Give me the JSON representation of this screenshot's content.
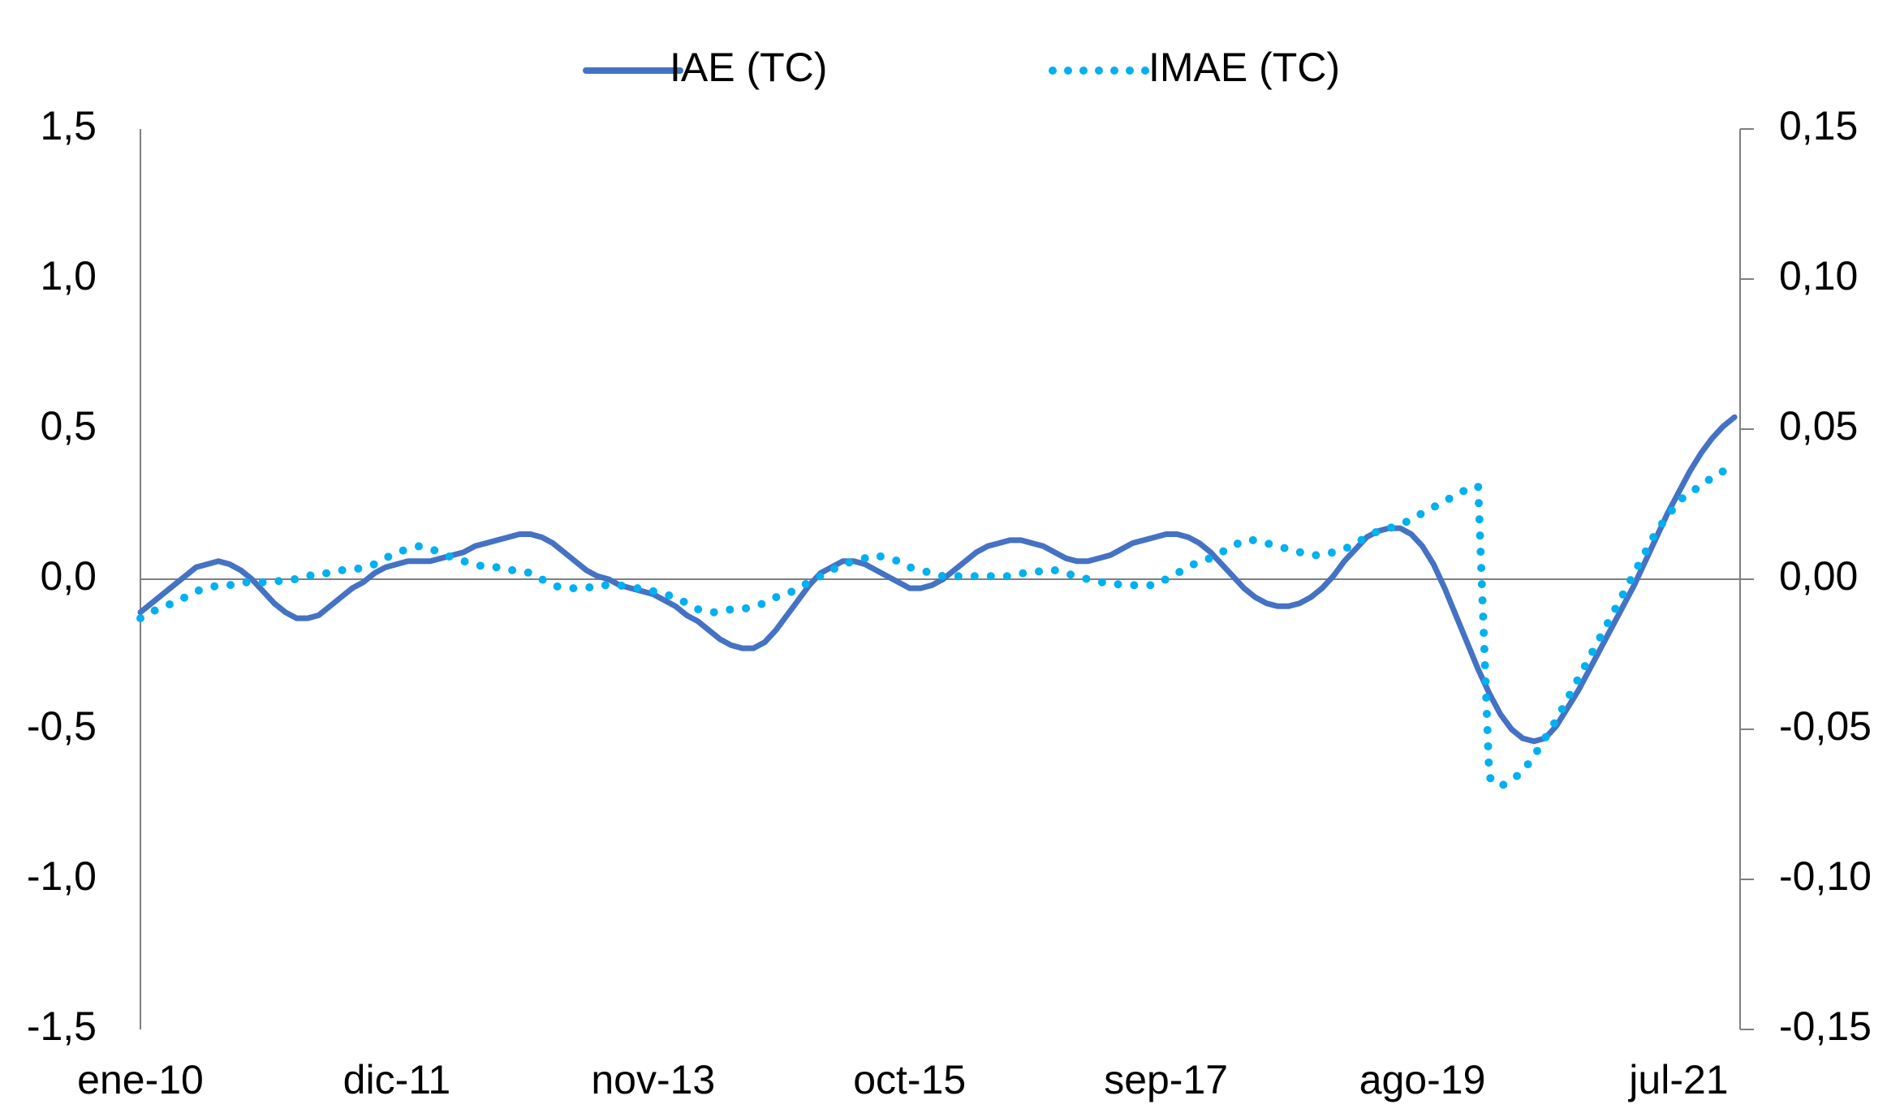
{
  "chart_data": {
    "type": "line",
    "categories": [
      "ene-10",
      null,
      null,
      null,
      null,
      null,
      null,
      null,
      null,
      null,
      null,
      null,
      null,
      null,
      null,
      null,
      null,
      null,
      null,
      null,
      null,
      null,
      null,
      "dic-11",
      null,
      null,
      null,
      null,
      null,
      null,
      null,
      null,
      null,
      null,
      null,
      null,
      null,
      null,
      null,
      null,
      null,
      null,
      null,
      null,
      null,
      null,
      "nov-13",
      null,
      null,
      null,
      null,
      null,
      null,
      null,
      null,
      null,
      null,
      null,
      null,
      null,
      null,
      null,
      null,
      null,
      null,
      null,
      null,
      null,
      null,
      "oct-15",
      null,
      null,
      null,
      null,
      null,
      null,
      null,
      null,
      null,
      null,
      null,
      null,
      null,
      null,
      null,
      null,
      null,
      null,
      null,
      null,
      null,
      null,
      "sep-17",
      null,
      null,
      null,
      null,
      null,
      null,
      null,
      null,
      null,
      null,
      null,
      null,
      null,
      null,
      null,
      null,
      null,
      null,
      null,
      null,
      null,
      null,
      "ago-19",
      null,
      null,
      null,
      null,
      null,
      null,
      null,
      null,
      null,
      null,
      null,
      null,
      null,
      null,
      null,
      null,
      null,
      null,
      null,
      null,
      null,
      null,
      "jul-21",
      null,
      null,
      null,
      null,
      null
    ],
    "series": [
      {
        "name": "IAE (TC)",
        "color": "#4472c4",
        "style": "solid",
        "values": [
          -0.11,
          -0.08,
          -0.05,
          -0.02,
          0.01,
          0.04,
          0.05,
          0.06,
          0.05,
          0.03,
          0.0,
          -0.04,
          -0.08,
          -0.11,
          -0.13,
          -0.13,
          -0.12,
          -0.09,
          -0.06,
          -0.03,
          -0.01,
          0.02,
          0.04,
          0.05,
          0.06,
          0.06,
          0.06,
          0.07,
          0.08,
          0.09,
          0.11,
          0.12,
          0.13,
          0.14,
          0.15,
          0.15,
          0.14,
          0.12,
          0.09,
          0.06,
          0.03,
          0.01,
          0.0,
          -0.02,
          -0.03,
          -0.04,
          -0.05,
          -0.07,
          -0.09,
          -0.12,
          -0.14,
          -0.17,
          -0.2,
          -0.22,
          -0.23,
          -0.23,
          -0.21,
          -0.17,
          -0.12,
          -0.07,
          -0.02,
          0.02,
          0.04,
          0.06,
          0.06,
          0.05,
          0.03,
          0.01,
          -0.01,
          -0.03,
          -0.03,
          -0.02,
          0.0,
          0.03,
          0.06,
          0.09,
          0.11,
          0.12,
          0.13,
          0.13,
          0.12,
          0.11,
          0.09,
          0.07,
          0.06,
          0.06,
          0.07,
          0.08,
          0.1,
          0.12,
          0.13,
          0.14,
          0.15,
          0.15,
          0.14,
          0.12,
          0.09,
          0.05,
          0.01,
          -0.03,
          -0.06,
          -0.08,
          -0.09,
          -0.09,
          -0.08,
          -0.06,
          -0.03,
          0.01,
          0.06,
          0.1,
          0.14,
          0.16,
          0.17,
          0.17,
          0.15,
          0.11,
          0.05,
          -0.03,
          -0.12,
          -0.21,
          -0.3,
          -0.38,
          -0.45,
          -0.5,
          -0.53,
          -0.54,
          -0.53,
          -0.49,
          -0.43,
          -0.37,
          -0.3,
          -0.23,
          -0.16,
          -0.09,
          -0.02,
          0.06,
          0.14,
          0.22,
          0.29,
          0.36,
          0.42,
          0.47,
          0.51,
          0.54
        ]
      },
      {
        "name": "IMAE (TC)",
        "color": "#00b0f0",
        "style": "dotted",
        "axis": "y2",
        "values": [
          -0.013,
          -0.011,
          -0.009,
          -0.008,
          -0.006,
          -0.004,
          -0.003,
          -0.002,
          -0.002,
          -0.001,
          -0.001,
          -0.001,
          -0.001,
          0,
          0,
          0.001,
          0.002,
          0.002,
          0.003,
          0.003,
          0.004,
          0.005,
          0.007,
          0.009,
          0.01,
          0.011,
          0.01,
          0.009,
          0.007,
          0.006,
          0.005,
          0.004,
          0.004,
          0.003,
          0.003,
          0.002,
          0,
          -0.002,
          -0.003,
          -0.003,
          -0.003,
          -0.002,
          -0.002,
          -0.002,
          -0.003,
          -0.003,
          -0.004,
          -0.005,
          -0.006,
          -0.008,
          -0.01,
          -0.011,
          -0.011,
          -0.01,
          -0.01,
          -0.009,
          -0.008,
          -0.006,
          -0.005,
          -0.003,
          -0.001,
          0.001,
          0.003,
          0.005,
          0.006,
          0.007,
          0.008,
          0.007,
          0.006,
          0.004,
          0.003,
          0.002,
          0.001,
          0.001,
          0.001,
          0.001,
          0.001,
          0.001,
          0.001,
          0.002,
          0.002,
          0.003,
          0.003,
          0.002,
          0.001,
          0,
          -0.001,
          -0.001,
          -0.002,
          -0.002,
          -0.002,
          -0.002,
          0,
          0.002,
          0.004,
          0.006,
          0.007,
          0.009,
          0.011,
          0.013,
          0.013,
          0.012,
          0.011,
          0.01,
          0.009,
          0.008,
          0.008,
          0.009,
          0.01,
          0.012,
          0.014,
          0.016,
          0.017,
          0.018,
          0.02,
          0.022,
          0.024,
          0.026,
          0.028,
          0.03,
          0.031,
          -0.066,
          -0.069,
          -0.067,
          -0.064,
          -0.059,
          -0.053,
          -0.047,
          -0.04,
          -0.033,
          -0.026,
          -0.019,
          -0.012,
          -0.005,
          0.002,
          0.009,
          0.016,
          0.021,
          0.026,
          0.029,
          0.031,
          0.034,
          0.036,
          0.038
        ]
      }
    ],
    "ylim": [
      -1.5,
      1.5
    ],
    "yticks": [
      {
        "value": 1.5,
        "label": "1,5"
      },
      {
        "value": 1.0,
        "label": "1,0"
      },
      {
        "value": 0.5,
        "label": "0,5"
      },
      {
        "value": 0,
        "label": "0,0"
      },
      {
        "value": -0.5,
        "label": "-0,5"
      },
      {
        "value": -1.0,
        "label": "-1,0"
      },
      {
        "value": -1.5,
        "label": "-1,5"
      }
    ],
    "y2lim": [
      -0.15,
      0.15
    ],
    "y2ticks": [
      {
        "value": 0.15,
        "label": "0,15"
      },
      {
        "value": 0.1,
        "label": "0,10"
      },
      {
        "value": 0.05,
        "label": "0,05"
      },
      {
        "value": 0,
        "label": "0,00"
      },
      {
        "value": -0.05,
        "label": "-0,05"
      },
      {
        "value": -0.1,
        "label": "-0,10"
      },
      {
        "value": -0.15,
        "label": "-0,15"
      }
    ],
    "grid": false,
    "legend": "top"
  }
}
